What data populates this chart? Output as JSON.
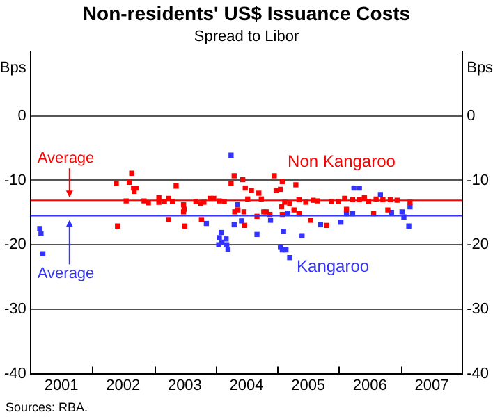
{
  "chart_data": {
    "type": "scatter",
    "title": "Non-residents' US$ Issuance Costs",
    "subtitle": "Spread to Libor",
    "ylabel": "Bps",
    "y2label": "Bps",
    "xlim": [
      2001,
      2008
    ],
    "xticks": [
      {
        "value": 2001.5,
        "label": "2001"
      },
      {
        "value": 2002,
        "label": null
      },
      {
        "value": 2002.5,
        "label": "2002"
      },
      {
        "value": 2003,
        "label": null
      },
      {
        "value": 2003.5,
        "label": "2003"
      },
      {
        "value": 2004,
        "label": null
      },
      {
        "value": 2004.5,
        "label": "2004"
      },
      {
        "value": 2005,
        "label": null
      },
      {
        "value": 2005.5,
        "label": "2005"
      },
      {
        "value": 2006,
        "label": null
      },
      {
        "value": 2006.5,
        "label": "2006"
      },
      {
        "value": 2007,
        "label": null
      },
      {
        "value": 2007.5,
        "label": "2007"
      }
    ],
    "ylim": [
      -40,
      10
    ],
    "yticks": [
      -40,
      -30,
      -20,
      -10,
      0
    ],
    "y2lim": [
      -40,
      10
    ],
    "y2ticks": [
      -40,
      -30,
      -20,
      -10,
      0
    ],
    "grid": "y",
    "legend": false,
    "marker": "square",
    "series": [
      {
        "name": "Non Kangaroo",
        "color": "#ff0000",
        "x": [
          2002.39,
          2002.41,
          2002.55,
          2002.6,
          2002.64,
          2002.67,
          2002.72,
          2002.68,
          2002.84,
          2002.91,
          2003.08,
          2003.08,
          2003.17,
          2003.24,
          2003.24,
          2003.36,
          2003.3,
          2003.48,
          2003.49,
          2003.48,
          2003.5,
          2003.68,
          2003.76,
          2003.77,
          2003.81,
          2003.91,
          2003.97,
          2004.06,
          2004.14,
          2004.25,
          2004.3,
          2004.44,
          2004.31,
          2004.36,
          2004.46,
          2004.48,
          2004.47,
          2004.58,
          2004.52,
          2004.67,
          2004.7,
          2004.78,
          2004.74,
          2004.82,
          2004.88,
          2004.95,
          2004.98,
          2005.05,
          2005.08,
          2005.07,
          2005.12,
          2005.08,
          2005.2,
          2005.3,
          2005.27,
          2005.35,
          2005.35,
          2005.46,
          2005.54,
          2005.58,
          2005.65,
          2005.8,
          2005.88,
          2005.99,
          2006.09,
          2006.12,
          2006.22,
          2006.33,
          2006.41,
          2006.48,
          2006.56,
          2006.6,
          2006.71,
          2006.79,
          2006.83,
          2006.94,
          2007.15
        ],
        "values": [
          -10.5,
          -17.1,
          -13.2,
          -10.3,
          -8.9,
          -11.2,
          -11.2,
          -11.7,
          -13.2,
          -13.5,
          -12.7,
          -13.4,
          -13.3,
          -12.8,
          -16.1,
          -10.9,
          -13.3,
          -13.8,
          -14.5,
          -14.9,
          -17.1,
          -13.3,
          -13.6,
          -16.1,
          -13.4,
          -12.8,
          -12.8,
          -13.2,
          -13.3,
          -10.5,
          -9.3,
          -9.9,
          -14.9,
          -14.6,
          -14.9,
          -11.2,
          -17,
          -11.6,
          -12.9,
          -15.6,
          -12,
          -14.9,
          -12.9,
          -14.9,
          -15.3,
          -9.3,
          -11.6,
          -11.4,
          -10.2,
          -14.1,
          -13.4,
          -15.3,
          -13.6,
          -10.7,
          -14.6,
          -15.2,
          -13,
          -13.4,
          -16.2,
          -13.1,
          -13.2,
          -17,
          -13.3,
          -13.3,
          -12.8,
          -14.5,
          -13,
          -13,
          -12.7,
          -13.3,
          -15.2,
          -12.9,
          -13,
          -14.6,
          -13,
          -13.1,
          -13.4
        ]
      },
      {
        "name": "Kangaroo",
        "color": "#3333ff",
        "x": [
          2001.15,
          2001.17,
          2001.2,
          2004.25,
          2003.85,
          2004.05,
          2004.06,
          2004.09,
          2004.1,
          2004.17,
          2004.18,
          2004.2,
          2004.3,
          2004.35,
          2004.42,
          2004.67,
          2004.89,
          2005.1,
          2005.05,
          2005.08,
          2005.14,
          2005.2,
          2005.17,
          2005.4,
          2005.7,
          2006.03,
          2006.12,
          2006.22,
          2006.24,
          2006.33,
          2006.67,
          2006.85,
          2007.02,
          2007.05,
          2007.13,
          2007.15
        ],
        "values": [
          -17.5,
          -18.3,
          -21.4,
          -6.1,
          -16.7,
          -20,
          -18.9,
          -18.1,
          -19.6,
          -19.1,
          -20,
          -20.7,
          -16.9,
          -13.8,
          -16.3,
          -18.4,
          -16.2,
          -17.9,
          -20.3,
          -20.8,
          -20.8,
          -22,
          -15.1,
          -18.6,
          -16.9,
          -16.5,
          -15.2,
          -15.2,
          -11.2,
          -11.2,
          -12.2,
          -15,
          -14.9,
          -15.7,
          -17.1,
          -14.1
        ]
      }
    ],
    "ref_lines": [
      {
        "axis": "y",
        "value": -13.1,
        "label": "Average",
        "color": "#ff0000"
      },
      {
        "axis": "y",
        "value": -15.5,
        "label": "Average",
        "color": "#3333ff"
      }
    ],
    "annotations": [
      "Sources: RBA."
    ]
  }
}
